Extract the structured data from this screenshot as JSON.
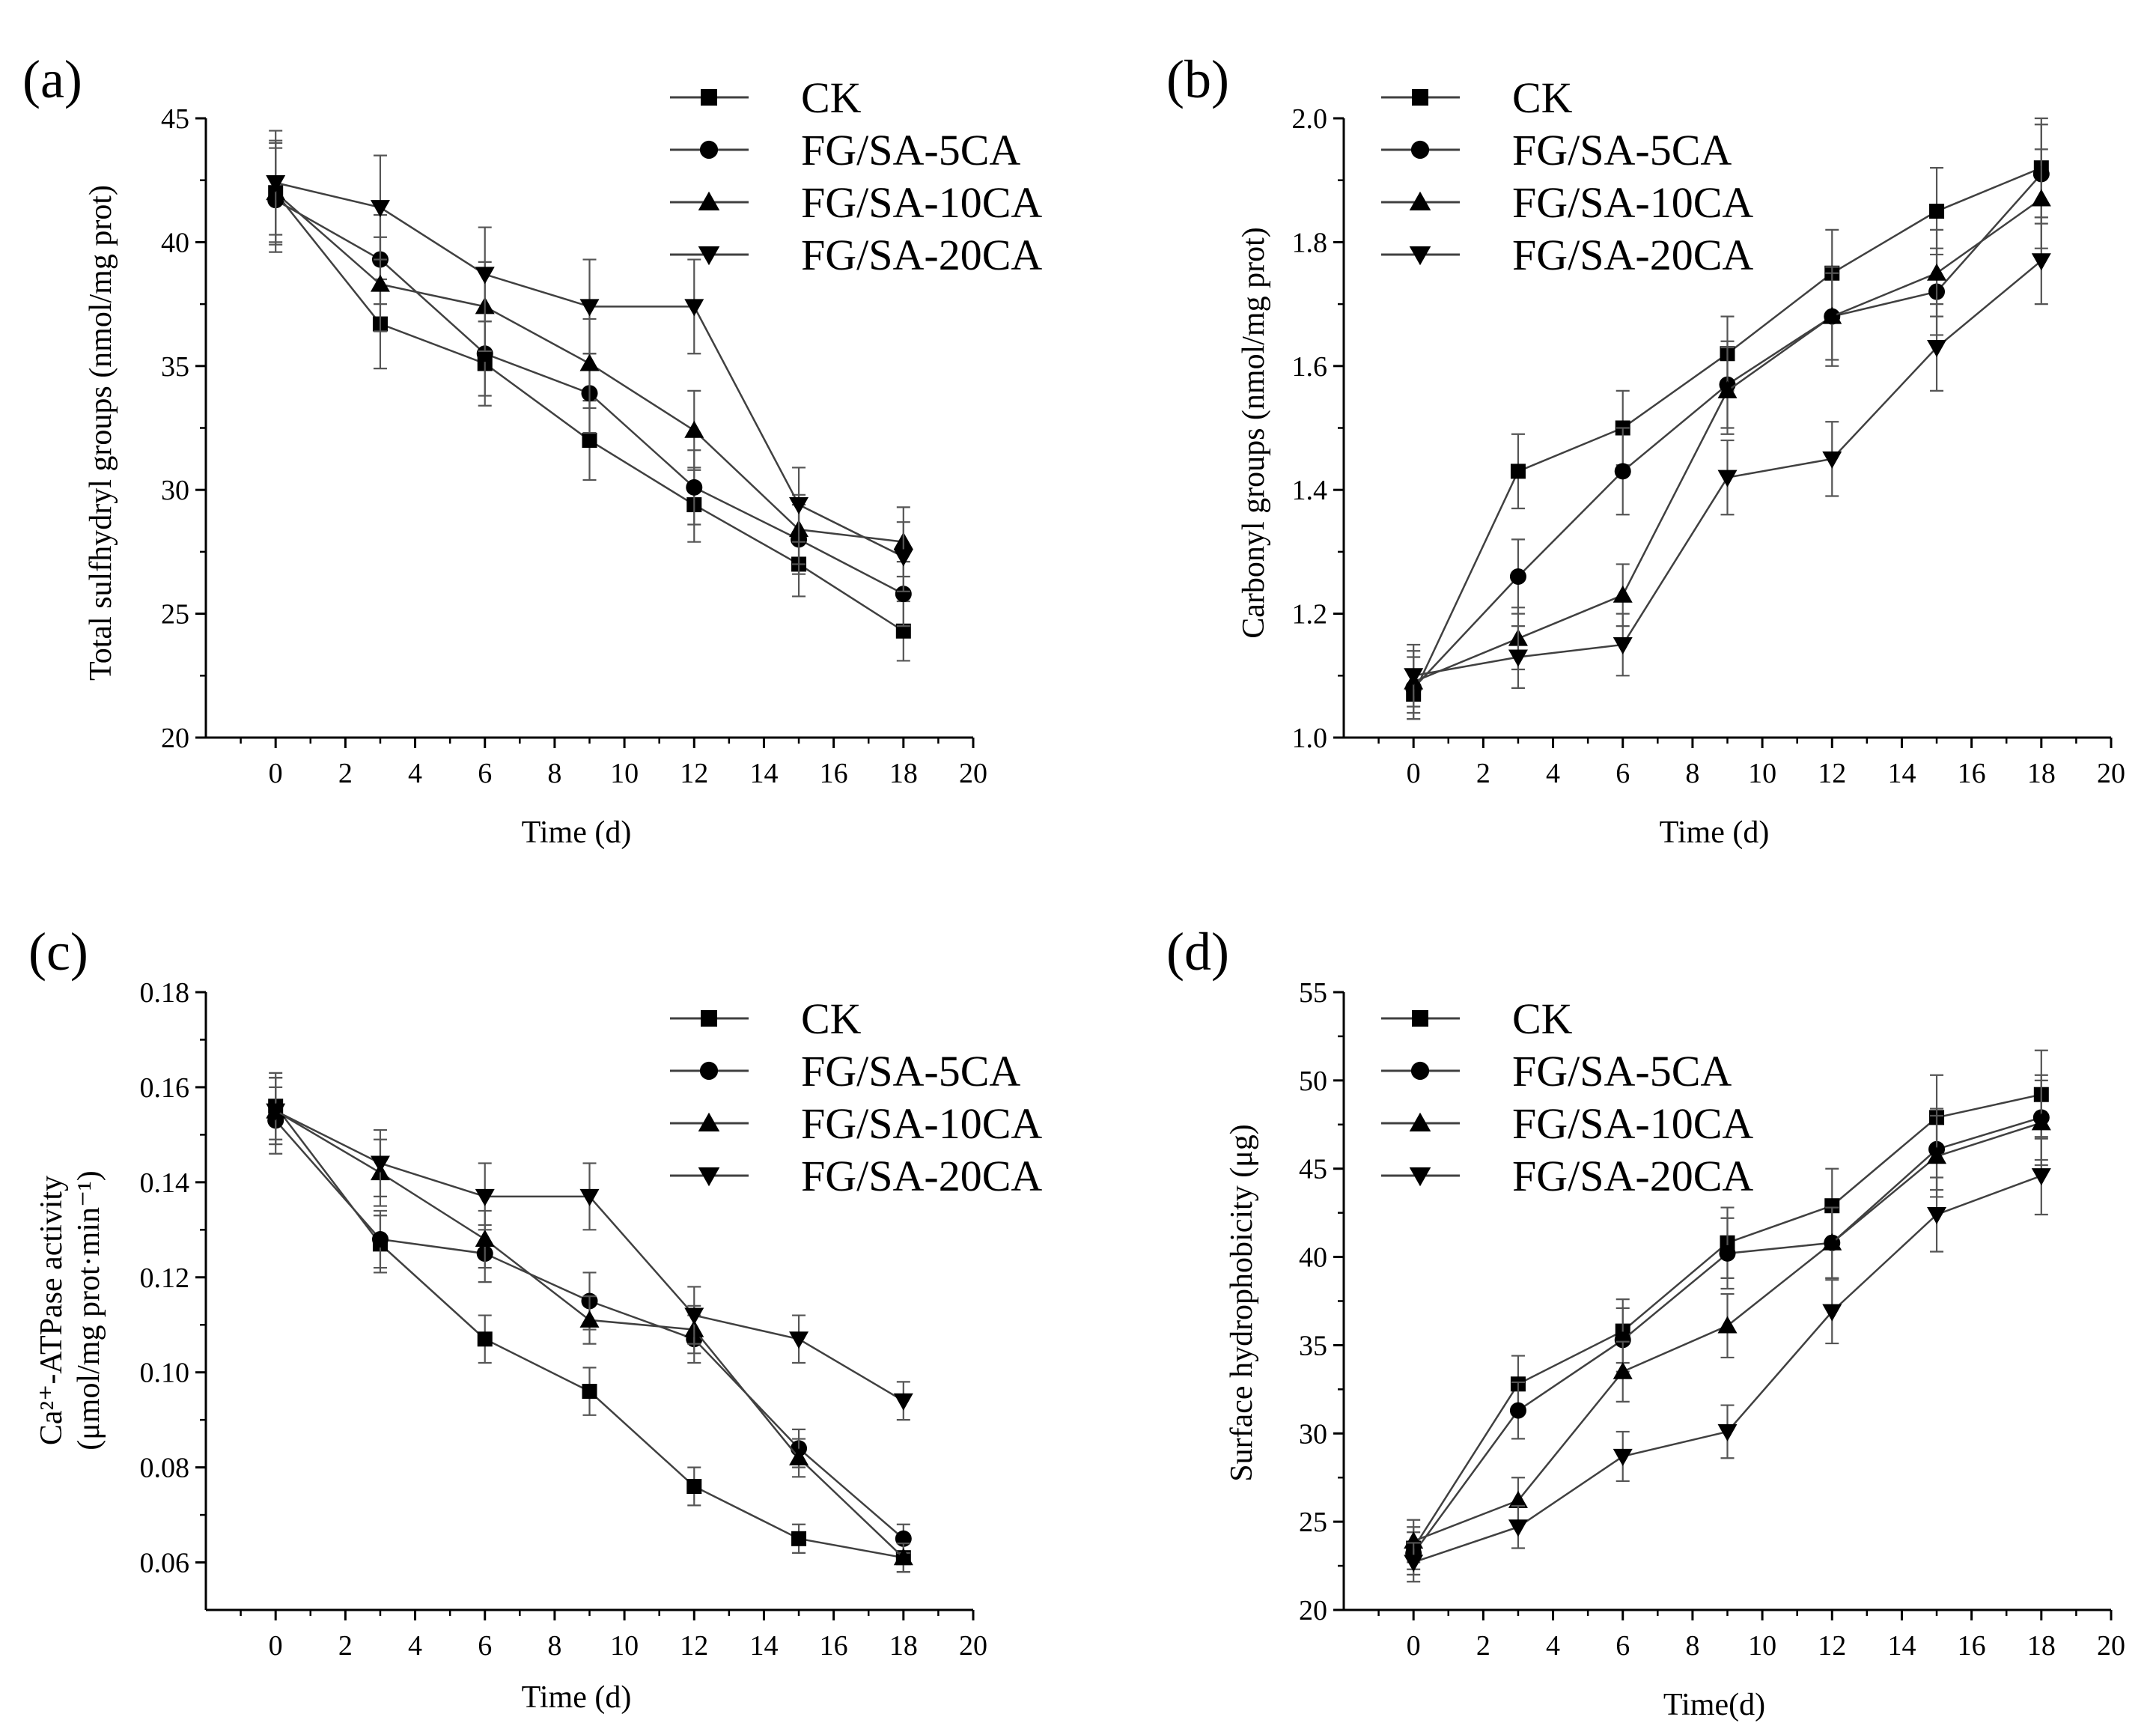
{
  "chart_data": [
    {
      "panel": "(a)",
      "type": "line",
      "xlabel": "Time (d)",
      "ylabel": "Total sulfhydryl groups (nmol/mg prot)",
      "xlim": [
        -2,
        20
      ],
      "ylim": [
        20,
        45
      ],
      "xticks": [
        0,
        2,
        4,
        6,
        8,
        10,
        12,
        14,
        16,
        18,
        20
      ],
      "yticks": [
        20,
        25,
        30,
        35,
        40,
        45
      ],
      "ytick_labels": [
        "20",
        "25",
        "30",
        "35",
        "40",
        "45"
      ],
      "x": [
        0,
        3,
        6,
        9,
        12,
        15,
        18
      ],
      "series": [
        {
          "name": "CK",
          "marker": "square",
          "values": [
            42.0,
            36.7,
            35.1,
            32.0,
            29.4,
            27.0,
            24.3
          ],
          "errors": [
            2.0,
            1.8,
            1.7,
            1.6,
            1.5,
            1.3,
            1.2
          ]
        },
        {
          "name": "FG/SA-5CA",
          "marker": "circle",
          "values": [
            41.7,
            39.3,
            35.5,
            33.9,
            30.1,
            28.0,
            25.8
          ],
          "errors": [
            2.1,
            1.8,
            1.7,
            1.6,
            1.5,
            1.4,
            1.3
          ]
        },
        {
          "name": "FG/SA-10CA",
          "marker": "triangle-up",
          "values": [
            42.0,
            38.3,
            37.4,
            35.1,
            32.4,
            28.4,
            27.9
          ],
          "errors": [
            2.1,
            1.9,
            1.8,
            1.8,
            1.6,
            1.4,
            1.4
          ]
        },
        {
          "name": "FG/SA-20CA",
          "marker": "triangle-down",
          "values": [
            42.4,
            41.4,
            38.7,
            37.4,
            37.4,
            29.4,
            27.3
          ],
          "errors": [
            2.1,
            2.1,
            1.9,
            1.9,
            1.9,
            1.5,
            1.4
          ]
        }
      ]
    },
    {
      "panel": "(b)",
      "type": "line",
      "xlabel": "Time (d)",
      "ylabel": "Carbonyl groups (nmol/mg prot)",
      "xlim": [
        -2,
        20
      ],
      "ylim": [
        1.0,
        2.0
      ],
      "xticks": [
        0,
        2,
        4,
        6,
        8,
        10,
        12,
        14,
        16,
        18,
        20
      ],
      "yticks": [
        1.0,
        1.2,
        1.4,
        1.6,
        1.8,
        2.0
      ],
      "ytick_labels": [
        "1.0",
        "1.2",
        "1.4",
        "1.6",
        "1.8",
        "2.0"
      ],
      "x": [
        0,
        3,
        6,
        9,
        12,
        15,
        18
      ],
      "series": [
        {
          "name": "CK",
          "marker": "square",
          "values": [
            1.07,
            1.43,
            1.5,
            1.62,
            1.75,
            1.85,
            1.92
          ],
          "errors": [
            0.04,
            0.06,
            0.06,
            0.06,
            0.07,
            0.07,
            0.08
          ]
        },
        {
          "name": "FG/SA-5CA",
          "marker": "circle",
          "values": [
            1.08,
            1.26,
            1.43,
            1.57,
            1.68,
            1.72,
            1.91
          ],
          "errors": [
            0.05,
            0.06,
            0.07,
            0.07,
            0.08,
            0.07,
            0.08
          ]
        },
        {
          "name": "FG/SA-10CA",
          "marker": "triangle-up",
          "values": [
            1.09,
            1.16,
            1.23,
            1.56,
            1.68,
            1.75,
            1.87
          ],
          "errors": [
            0.05,
            0.05,
            0.05,
            0.07,
            0.07,
            0.07,
            0.08
          ]
        },
        {
          "name": "FG/SA-20CA",
          "marker": "triangle-down",
          "values": [
            1.1,
            1.13,
            1.15,
            1.42,
            1.45,
            1.63,
            1.77
          ],
          "errors": [
            0.05,
            0.05,
            0.05,
            0.06,
            0.06,
            0.07,
            0.07
          ]
        }
      ]
    },
    {
      "panel": "(c)",
      "type": "line",
      "xlabel": "Time (d)",
      "ylabel_line1": "Ca²⁺-ATPase activity",
      "ylabel_line2": "(μmol/mg prot·min⁻¹)",
      "xlim": [
        -2,
        20
      ],
      "ylim": [
        0.05,
        0.18
      ],
      "xticks": [
        0,
        2,
        4,
        6,
        8,
        10,
        12,
        14,
        16,
        18,
        20
      ],
      "yticks": [
        0.06,
        0.08,
        0.1,
        0.12,
        0.14,
        0.16,
        0.18
      ],
      "ytick_labels": [
        "0.06",
        "0.08",
        "0.10",
        "0.12",
        "0.14",
        "0.16",
        "0.18"
      ],
      "x": [
        0,
        3,
        6,
        9,
        12,
        15,
        18
      ],
      "series": [
        {
          "name": "CK",
          "marker": "square",
          "values": [
            0.156,
            0.127,
            0.107,
            0.096,
            0.076,
            0.065,
            0.061
          ],
          "errors": [
            0.007,
            0.006,
            0.005,
            0.005,
            0.004,
            0.003,
            0.003
          ]
        },
        {
          "name": "FG/SA-5CA",
          "marker": "circle",
          "values": [
            0.153,
            0.128,
            0.125,
            0.115,
            0.107,
            0.084,
            0.065
          ],
          "errors": [
            0.007,
            0.006,
            0.006,
            0.006,
            0.005,
            0.004,
            0.003
          ]
        },
        {
          "name": "FG/SA-10CA",
          "marker": "triangle-up",
          "values": [
            0.155,
            0.142,
            0.128,
            0.111,
            0.109,
            0.082,
            0.061
          ],
          "errors": [
            0.007,
            0.007,
            0.006,
            0.005,
            0.005,
            0.004,
            0.003
          ]
        },
        {
          "name": "FG/SA-20CA",
          "marker": "triangle-down",
          "values": [
            0.155,
            0.144,
            0.137,
            0.137,
            0.112,
            0.107,
            0.094
          ],
          "errors": [
            0.007,
            0.007,
            0.007,
            0.007,
            0.006,
            0.005,
            0.004
          ]
        }
      ]
    },
    {
      "panel": "(d)",
      "type": "line",
      "xlabel": "Time(d)",
      "ylabel": "Surface hydrophobicity (μg)",
      "xlim": [
        -2,
        20
      ],
      "ylim": [
        20,
        55
      ],
      "xticks": [
        0,
        2,
        4,
        6,
        8,
        10,
        12,
        14,
        16,
        18,
        20
      ],
      "yticks": [
        20,
        25,
        30,
        35,
        40,
        45,
        50,
        55
      ],
      "ytick_labels": [
        "20",
        "25",
        "30",
        "35",
        "40",
        "45",
        "50",
        "55"
      ],
      "x": [
        0,
        3,
        6,
        9,
        12,
        15,
        18
      ],
      "series": [
        {
          "name": "CK",
          "marker": "square",
          "values": [
            23.5,
            32.8,
            35.8,
            40.8,
            42.9,
            47.9,
            49.2
          ],
          "errors": [
            1.2,
            1.6,
            1.8,
            2.0,
            2.1,
            2.4,
            2.5
          ]
        },
        {
          "name": "FG/SA-5CA",
          "marker": "circle",
          "values": [
            23.2,
            31.3,
            35.3,
            40.2,
            40.8,
            46.1,
            47.9
          ],
          "errors": [
            1.2,
            1.6,
            1.8,
            2.0,
            2.0,
            2.3,
            2.4
          ]
        },
        {
          "name": "FG/SA-10CA",
          "marker": "triangle-up",
          "values": [
            23.9,
            26.2,
            33.5,
            36.1,
            40.8,
            45.7,
            47.6
          ],
          "errors": [
            1.2,
            1.3,
            1.7,
            1.8,
            2.0,
            2.3,
            2.4
          ]
        },
        {
          "name": "FG/SA-20CA",
          "marker": "triangle-down",
          "values": [
            22.7,
            24.7,
            28.7,
            30.1,
            36.9,
            42.4,
            44.6
          ],
          "errors": [
            1.1,
            1.2,
            1.4,
            1.5,
            1.8,
            2.1,
            2.2
          ]
        }
      ]
    }
  ]
}
